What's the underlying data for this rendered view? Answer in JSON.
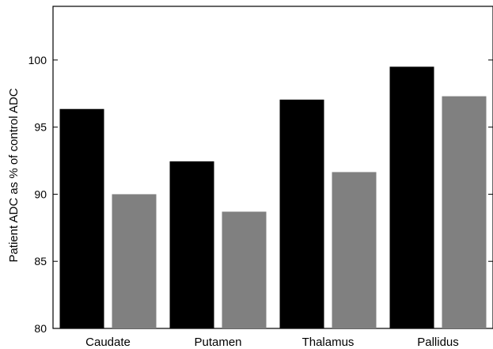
{
  "chart_data": {
    "type": "bar",
    "title": "",
    "xlabel": "",
    "ylabel": "Patient ADC as % of control ADC",
    "ylim": [
      80,
      104
    ],
    "yticks": [
      80,
      85,
      90,
      95,
      100
    ],
    "grid": false,
    "legend": "none",
    "categories": [
      "Caudate",
      "Putamen",
      "Thalamus",
      "Pallidus"
    ],
    "series": [
      {
        "values": [
          96.35,
          92.45,
          97.05,
          99.5
        ],
        "color": "#000000"
      },
      {
        "values": [
          90.0,
          88.7,
          91.65,
          97.3
        ],
        "color": "#808080"
      }
    ]
  }
}
